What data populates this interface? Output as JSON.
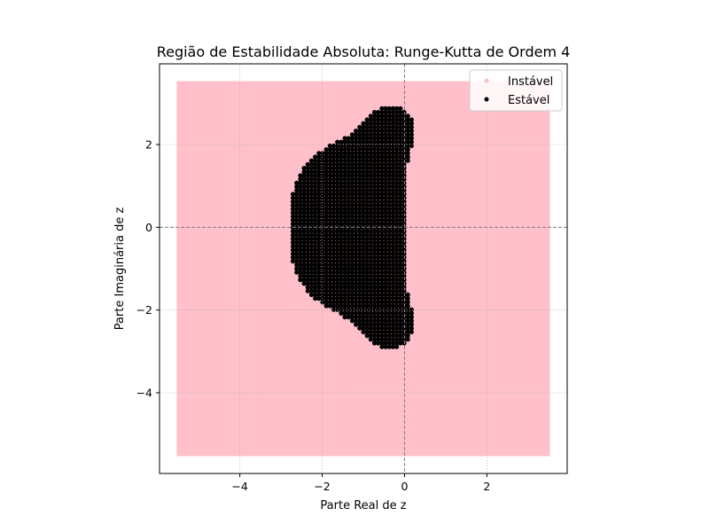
{
  "chart_data": {
    "type": "scatter",
    "title": "Região de Estabilidade Absoluta: Runge-Kutta de Ordem 4",
    "xlabel": "Parte Real de z",
    "ylabel": "Parte Imaginária de z",
    "xlim": [
      -5.95,
      3.95
    ],
    "ylim": [
      -5.95,
      3.95
    ],
    "xticks": [
      -4,
      -2,
      0,
      2
    ],
    "yticks": [
      -4,
      -2,
      0,
      2
    ],
    "xtick_labels": [
      "−4",
      "−2",
      "0",
      "2"
    ],
    "ytick_labels": [
      "−4",
      "−2",
      "0",
      "2"
    ],
    "grid": true,
    "grid_style": "dotted",
    "reference_lines": [
      {
        "axis": "x",
        "value": 0,
        "style": "dashed"
      },
      {
        "axis": "y",
        "value": 0,
        "style": "dashed"
      }
    ],
    "legend_position": "top-right",
    "grid_region": {
      "x_range": [
        -5.5,
        3.5
      ],
      "y_range": [
        -5.5,
        3.5
      ],
      "step": 0.09
    },
    "series": [
      {
        "name": "Instável",
        "color": "#ffc0cb",
        "description_rule": "points where |1+z+z^2/2+z^3/6+z^4/24| > 1"
      },
      {
        "name": "Estável",
        "color": "#000000",
        "description_rule": "points where |1+z+z^2/2+z^3/6+z^4/24| <= 1"
      }
    ]
  }
}
